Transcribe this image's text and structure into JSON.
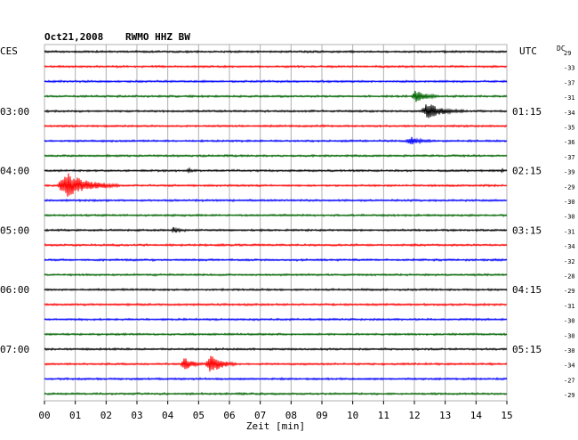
{
  "header": {
    "date": "Oct21,2008",
    "station": "RWMO HHZ BW",
    "left_tz": "CES",
    "right_tz": "UTC",
    "dc_label": "DC"
  },
  "chart_data": {
    "type": "line",
    "title": "Oct21,2008  RWMO HHZ BW",
    "xlabel": "Zeit [min]",
    "x_ticks": [
      "00",
      "01",
      "02",
      "03",
      "04",
      "05",
      "06",
      "07",
      "08",
      "09",
      "10",
      "11",
      "12",
      "13",
      "14",
      "15"
    ],
    "xlim": [
      0,
      15
    ],
    "grid": true,
    "trace_count": 24,
    "trace_colors": [
      "#000000",
      "#ff0000",
      "#0000ff",
      "#006400"
    ],
    "left_time_labels": [
      {
        "trace": 4,
        "label": "03:00"
      },
      {
        "trace": 8,
        "label": "04:00"
      },
      {
        "trace": 12,
        "label": "05:00"
      },
      {
        "trace": 16,
        "label": "06:00"
      },
      {
        "trace": 20,
        "label": "07:00"
      }
    ],
    "right_time_labels": [
      {
        "trace": 4,
        "label": "01:15"
      },
      {
        "trace": 8,
        "label": "02:15"
      },
      {
        "trace": 12,
        "label": "03:15"
      },
      {
        "trace": 16,
        "label": "04:15"
      },
      {
        "trace": 20,
        "label": "05:15"
      }
    ],
    "dc_offsets": [
      "29",
      "-33",
      "-37",
      "-31",
      "-34",
      "-35",
      "-36",
      "-37",
      "-39",
      "-29",
      "-30",
      "-30",
      "-31",
      "-34",
      "-32",
      "-28",
      "-29",
      "-31",
      "-30",
      "-30",
      "-30",
      "-34",
      "-27",
      "-29"
    ],
    "events": [
      {
        "trace": 3,
        "minute": 12.0,
        "amplitude": 7,
        "duration_min": 0.9
      },
      {
        "trace": 4,
        "minute": 12.3,
        "amplitude": 9,
        "duration_min": 1.4
      },
      {
        "trace": 6,
        "minute": 11.8,
        "amplitude": 4,
        "duration_min": 1.0
      },
      {
        "trace": 8,
        "minute": 4.7,
        "amplitude": 2,
        "duration_min": 0.3
      },
      {
        "trace": 8,
        "minute": 14.9,
        "amplitude": 4,
        "duration_min": 0.1
      },
      {
        "trace": 9,
        "minute": 0.5,
        "amplitude": 15,
        "duration_min": 2.0
      },
      {
        "trace": 12,
        "minute": 4.2,
        "amplitude": 3,
        "duration_min": 0.5
      },
      {
        "trace": 21,
        "minute": 4.5,
        "amplitude": 8,
        "duration_min": 0.7
      },
      {
        "trace": 21,
        "minute": 5.3,
        "amplitude": 12,
        "duration_min": 1.0
      }
    ]
  }
}
